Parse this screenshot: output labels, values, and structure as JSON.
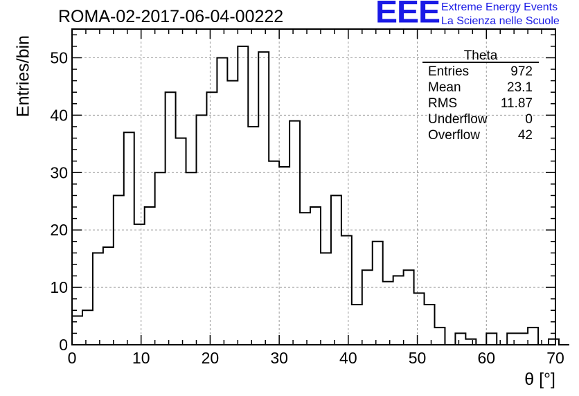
{
  "title": "ROMA-02-2017-06-04-00222",
  "logo": {
    "mark": "EEE",
    "line1": "Extreme Energy Events",
    "line2": "La Scienza nelle Scuole",
    "color": "#1a1ae6"
  },
  "stats": {
    "title": "Theta",
    "rows": [
      {
        "label": "Entries",
        "value": "972"
      },
      {
        "label": "Mean",
        "value": "23.1"
      },
      {
        "label": "RMS",
        "value": "11.87"
      },
      {
        "label": "Underflow",
        "value": "0"
      },
      {
        "label": "Overflow",
        "value": "42"
      }
    ]
  },
  "chart_data": {
    "type": "histogram",
    "xlabel": "θ [°]",
    "ylabel": "Entries/bin",
    "xlim": [
      0,
      70
    ],
    "ylim": [
      0,
      55
    ],
    "bin_width": 1.5,
    "x_ticks": [
      0,
      10,
      20,
      30,
      40,
      50,
      60,
      70
    ],
    "y_ticks": [
      0,
      10,
      20,
      30,
      40,
      50
    ],
    "grid": true,
    "bin_edges_start": 0,
    "values": [
      5,
      6,
      16,
      17,
      26,
      37,
      21,
      24,
      30,
      44,
      36,
      30,
      40,
      44,
      50,
      46,
      52,
      38,
      51,
      32,
      31,
      39,
      23,
      24,
      16,
      26,
      19,
      7,
      13,
      18,
      11,
      12,
      13,
      9,
      7,
      3,
      0,
      2,
      1,
      0,
      2,
      0,
      2,
      2,
      3,
      0,
      1,
      0
    ]
  }
}
